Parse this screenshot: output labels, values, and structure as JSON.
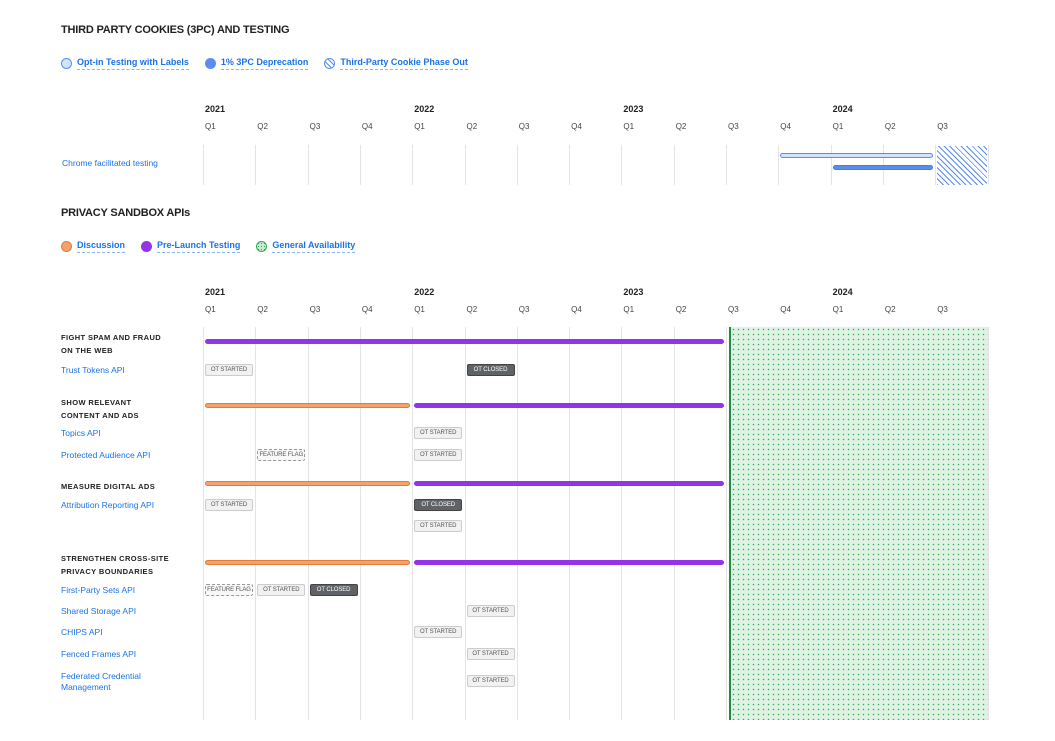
{
  "quarters": [
    "2021 Q1",
    "2021 Q2",
    "2021 Q3",
    "2021 Q4",
    "2022 Q1",
    "2022 Q2",
    "2022 Q3",
    "2022 Q4",
    "2023 Q1",
    "2023 Q2",
    "2023 Q3",
    "2023 Q4",
    "2024 Q1",
    "2024 Q2",
    "2024 Q3"
  ],
  "axis": {
    "years": [
      {
        "label": "2021",
        "start": "2021 Q1"
      },
      {
        "label": "2022",
        "start": "2022 Q1"
      },
      {
        "label": "2023",
        "start": "2023 Q1"
      },
      {
        "label": "2024",
        "start": "2024 Q1"
      }
    ],
    "quarter_labels": [
      "Q1",
      "Q2",
      "Q3",
      "Q4",
      "Q1",
      "Q2",
      "Q3",
      "Q4",
      "Q1",
      "Q2",
      "Q3",
      "Q4",
      "Q1",
      "Q2",
      "Q3"
    ]
  },
  "cookies": {
    "title": "THIRD PARTY COOKIES (3PC) AND TESTING",
    "legend": [
      {
        "label": "Opt-in Testing with Labels",
        "style": "light",
        "color": "#d2e3fc"
      },
      {
        "label": "1% 3PC Deprecation",
        "style": "solid",
        "color": "#5b8def"
      },
      {
        "label": "Third-Party Cookie Phase Out",
        "style": "hatched",
        "color": "#5b8def"
      }
    ],
    "row_label": "Chrome facilitated testing",
    "bars": [
      {
        "phase": "Opt-in Testing with Labels",
        "start": "2023 Q4",
        "end": "2024 Q2"
      },
      {
        "phase": "1% 3PC Deprecation",
        "start": "2024 Q1",
        "end": "2024 Q2"
      },
      {
        "phase": "Third-Party Cookie Phase Out",
        "start": "2024 Q3",
        "end": "2024 Q3"
      }
    ]
  },
  "sandbox": {
    "title": "PRIVACY SANDBOX APIs",
    "legend": [
      {
        "label": "Discussion",
        "color": "#f6a06a"
      },
      {
        "label": "Pre-Launch Testing",
        "color": "#9334e6"
      },
      {
        "label": "General Availability",
        "color": "#81c995"
      }
    ],
    "general_availability": {
      "start": "2023 Q3",
      "end": "2024 Q3"
    },
    "groups": [
      {
        "title": "FIGHT SPAM AND FRAUD ON THE WEB",
        "phases": [
          {
            "phase": "Pre-Launch Testing",
            "start": "2021 Q1",
            "end": "2023 Q2"
          }
        ],
        "apis": [
          {
            "name": "Trust Tokens API",
            "badges": [
              {
                "text": "OT STARTED",
                "kind": "started",
                "at": "2021 Q1"
              },
              {
                "text": "OT CLOSED",
                "kind": "closed",
                "at": "2022 Q2"
              }
            ]
          }
        ]
      },
      {
        "title": "SHOW RELEVANT CONTENT AND ADS",
        "phases": [
          {
            "phase": "Discussion",
            "start": "2021 Q1",
            "end": "2021 Q4"
          },
          {
            "phase": "Pre-Launch Testing",
            "start": "2022 Q1",
            "end": "2023 Q2"
          }
        ],
        "apis": [
          {
            "name": "Topics API",
            "badges": [
              {
                "text": "OT STARTED",
                "kind": "started",
                "at": "2022 Q1"
              }
            ]
          },
          {
            "name": "Protected Audience API",
            "badges": [
              {
                "text": "FEATURE FLAG",
                "kind": "flag",
                "at": "2021 Q2"
              },
              {
                "text": "OT STARTED",
                "kind": "started",
                "at": "2022 Q1"
              }
            ]
          }
        ]
      },
      {
        "title": "MEASURE DIGITAL ADS",
        "phases": [
          {
            "phase": "Discussion",
            "start": "2021 Q1",
            "end": "2021 Q4"
          },
          {
            "phase": "Pre-Launch Testing",
            "start": "2022 Q1",
            "end": "2023 Q2"
          }
        ],
        "apis": [
          {
            "name": "Attribution Reporting API",
            "badges": [
              {
                "text": "OT STARTED",
                "kind": "started",
                "at": "2021 Q1"
              },
              {
                "text": "OT CLOSED",
                "kind": "closed",
                "at": "2022 Q1"
              },
              {
                "text": "OT STARTED",
                "kind": "started",
                "at": "2022 Q1",
                "line": 2
              }
            ]
          }
        ]
      },
      {
        "title": "STRENGTHEN CROSS-SITE PRIVACY BOUNDARIES",
        "phases": [
          {
            "phase": "Discussion",
            "start": "2021 Q1",
            "end": "2021 Q4"
          },
          {
            "phase": "Pre-Launch Testing",
            "start": "2022 Q1",
            "end": "2023 Q2"
          }
        ],
        "apis": [
          {
            "name": "First-Party Sets API",
            "badges": [
              {
                "text": "FEATURE FLAG",
                "kind": "flag",
                "at": "2021 Q1"
              },
              {
                "text": "OT STARTED",
                "kind": "started",
                "at": "2021 Q2"
              },
              {
                "text": "OT CLOSED",
                "kind": "closed",
                "at": "2021 Q3"
              }
            ]
          },
          {
            "name": "Shared Storage API",
            "badges": [
              {
                "text": "OT STARTED",
                "kind": "started",
                "at": "2022 Q2"
              }
            ]
          },
          {
            "name": "CHIPS API",
            "badges": [
              {
                "text": "OT STARTED",
                "kind": "started",
                "at": "2022 Q1"
              }
            ]
          },
          {
            "name": "Fenced Frames API",
            "badges": [
              {
                "text": "OT STARTED",
                "kind": "started",
                "at": "2022 Q2"
              }
            ]
          },
          {
            "name": "Federated Credential Management",
            "badges": [
              {
                "text": "OT STARTED",
                "kind": "started",
                "at": "2022 Q2"
              }
            ]
          }
        ]
      }
    ]
  }
}
